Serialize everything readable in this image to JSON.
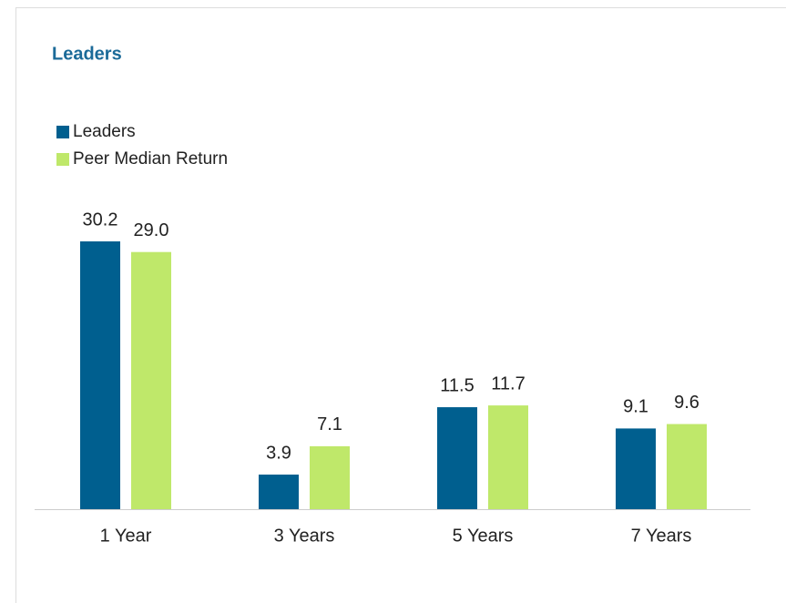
{
  "chart_data": {
    "type": "bar",
    "title": "Leaders",
    "categories": [
      "1 Year",
      "3 Years",
      "5 Years",
      "7 Years"
    ],
    "series": [
      {
        "name": "Leaders",
        "color": "#005f8f",
        "values": [
          30.2,
          3.9,
          11.5,
          9.1
        ],
        "value_labels": [
          "30.2",
          "3.9",
          "11.5",
          "9.1"
        ]
      },
      {
        "name": "Peer Median Return",
        "color": "#bfe86a",
        "values": [
          29.0,
          7.1,
          11.7,
          9.6
        ],
        "value_labels": [
          "29.0",
          "7.1",
          "11.7",
          "9.6"
        ]
      }
    ]
  }
}
